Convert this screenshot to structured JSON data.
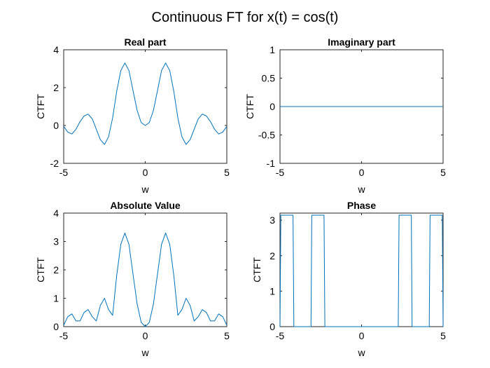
{
  "figure": {
    "title": "Continuous FT for x(t) = cos(t)"
  },
  "colors": {
    "series": "#0072BD",
    "axes": "#262626",
    "background": "#ffffff"
  },
  "chart_data": [
    {
      "id": "real",
      "type": "line",
      "title": "Real part",
      "xlabel": "w",
      "ylabel": "CTFT",
      "xlim": [
        -5,
        5
      ],
      "ylim": [
        -2,
        4
      ],
      "xticks": [
        -5,
        0,
        5
      ],
      "yticks": [
        -2,
        0,
        2,
        4
      ],
      "grid": false,
      "x": [
        -5.0,
        -4.75,
        -4.5,
        -4.25,
        -4.0,
        -3.75,
        -3.5,
        -3.25,
        -3.0,
        -2.75,
        -2.5,
        -2.25,
        -2.0,
        -1.75,
        -1.5,
        -1.25,
        -1.0,
        -0.75,
        -0.5,
        -0.25,
        0.0,
        0.25,
        0.5,
        0.75,
        1.0,
        1.25,
        1.5,
        1.75,
        2.0,
        2.25,
        2.5,
        2.75,
        3.0,
        3.25,
        3.5,
        3.75,
        4.0,
        4.25,
        4.5,
        4.75,
        5.0
      ],
      "y": [
        -0.05,
        -0.35,
        -0.45,
        -0.2,
        0.2,
        0.5,
        0.6,
        0.35,
        -0.2,
        -0.75,
        -1.0,
        -0.6,
        0.4,
        1.8,
        2.9,
        3.3,
        2.9,
        1.85,
        0.8,
        0.15,
        0.0,
        0.15,
        0.8,
        1.85,
        2.9,
        3.3,
        2.9,
        1.8,
        0.4,
        -0.6,
        -1.0,
        -0.75,
        -0.2,
        0.35,
        0.6,
        0.5,
        0.2,
        -0.2,
        -0.45,
        -0.35,
        -0.05
      ]
    },
    {
      "id": "imag",
      "type": "line",
      "title": "Imaginary part",
      "xlabel": "w",
      "ylabel": "CTFT",
      "xlim": [
        -5,
        5
      ],
      "ylim": [
        -1,
        1
      ],
      "xticks": [
        -5,
        0,
        5
      ],
      "yticks": [
        -1,
        -0.5,
        0,
        0.5,
        1
      ],
      "grid": false,
      "x": [
        -5,
        5
      ],
      "y": [
        0,
        0
      ]
    },
    {
      "id": "abs",
      "type": "line",
      "title": "Absolute Value",
      "xlabel": "w",
      "ylabel": "CTFT",
      "xlim": [
        -5,
        5
      ],
      "ylim": [
        0,
        4
      ],
      "xticks": [
        -5,
        0,
        5
      ],
      "yticks": [
        0,
        1,
        2,
        3,
        4
      ],
      "grid": false,
      "x": [
        -5.0,
        -4.75,
        -4.5,
        -4.25,
        -4.0,
        -3.75,
        -3.5,
        -3.25,
        -3.0,
        -2.75,
        -2.5,
        -2.25,
        -2.0,
        -1.75,
        -1.5,
        -1.25,
        -1.0,
        -0.75,
        -0.5,
        -0.25,
        0.0,
        0.25,
        0.5,
        0.75,
        1.0,
        1.25,
        1.5,
        1.75,
        2.0,
        2.25,
        2.5,
        2.75,
        3.0,
        3.25,
        3.5,
        3.75,
        4.0,
        4.25,
        4.5,
        4.75,
        5.0
      ],
      "y": [
        0.05,
        0.35,
        0.45,
        0.2,
        0.2,
        0.5,
        0.6,
        0.35,
        0.2,
        0.75,
        1.0,
        0.6,
        0.4,
        1.8,
        2.9,
        3.3,
        2.9,
        1.85,
        0.8,
        0.15,
        0.0,
        0.15,
        0.8,
        1.85,
        2.9,
        3.3,
        2.9,
        1.8,
        0.4,
        0.6,
        1.0,
        0.75,
        0.2,
        0.35,
        0.6,
        0.5,
        0.2,
        0.2,
        0.45,
        0.35,
        0.05
      ]
    },
    {
      "id": "phase",
      "type": "line",
      "title": "Phase",
      "xlabel": "w",
      "ylabel": "CTFT",
      "xlim": [
        -5,
        5
      ],
      "ylim": [
        0,
        3.2
      ],
      "xticks": [
        -5,
        0,
        5
      ],
      "yticks": [
        0,
        1,
        2,
        3
      ],
      "grid": false,
      "x": [
        -5.0,
        -4.95,
        -4.7,
        -4.65,
        -4.2,
        -4.15,
        -3.1,
        -3.05,
        -2.3,
        -2.25,
        2.25,
        2.3,
        3.05,
        3.1,
        4.15,
        4.2,
        4.65,
        4.7,
        4.95,
        5.0
      ],
      "y": [
        0.0,
        3.14,
        3.14,
        3.14,
        3.14,
        0.0,
        0.0,
        3.14,
        3.14,
        0.0,
        0.0,
        3.14,
        3.14,
        0.0,
        0.0,
        3.14,
        3.14,
        3.14,
        3.14,
        0.0
      ]
    }
  ]
}
